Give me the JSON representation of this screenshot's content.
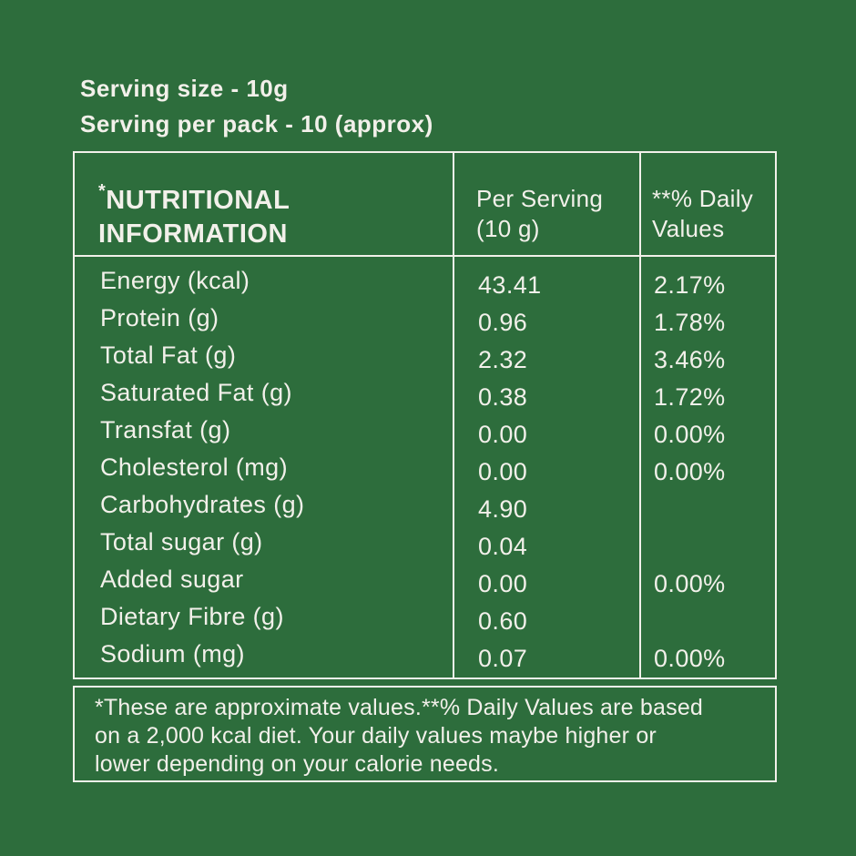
{
  "colors": {
    "background": "#2D6D3C",
    "text": "#F2F0EA",
    "border": "#F2F0EA"
  },
  "intro": {
    "serving_size": "Serving size - 10g",
    "serving_per_pack": "Serving per pack - 10 (approx)"
  },
  "table": {
    "header": {
      "title_mark": "*",
      "title": "NUTRITIONAL INFORMATION",
      "per_serving_column": "Per Serving (10 g)",
      "daily_values_column": "**% Daily Values"
    },
    "rows": [
      {
        "label": "Energy (kcal)",
        "per_serving": "43.41",
        "daily_value": "2.17%"
      },
      {
        "label": "Protein (g)",
        "per_serving": "0.96",
        "daily_value": "1.78%"
      },
      {
        "label": "Total Fat (g)",
        "per_serving": "2.32",
        "daily_value": "3.46%"
      },
      {
        "label": "Saturated Fat (g)",
        "per_serving": "0.38",
        "daily_value": "1.72%"
      },
      {
        "label": "Transfat (g)",
        "per_serving": "0.00",
        "daily_value": "0.00%"
      },
      {
        "label": "Cholesterol (mg)",
        "per_serving": "0.00",
        "daily_value": "0.00%"
      },
      {
        "label": "Carbohydrates (g)",
        "per_serving": "4.90",
        "daily_value": ""
      },
      {
        "label": "Total sugar (g)",
        "per_serving": "0.04",
        "daily_value": ""
      },
      {
        "label": "Added sugar",
        "per_serving": "0.00",
        "daily_value": "0.00%"
      },
      {
        "label": "Dietary Fibre (g)",
        "per_serving": "0.60",
        "daily_value": ""
      },
      {
        "label": "Sodium (mg)",
        "per_serving": "0.07",
        "daily_value": "0.00%"
      }
    ],
    "footnote_lines": [
      "*These are approximate values.**% Daily Values are based",
      "on a 2,000 kcal diet. Your daily values maybe higher or",
      "lower depending on your calorie needs."
    ],
    "footnote_full": "*These are approximate values.**% Daily Values are based on a 2,000 kcal diet. Your daily values maybe higher or lower depending on your calorie needs."
  }
}
